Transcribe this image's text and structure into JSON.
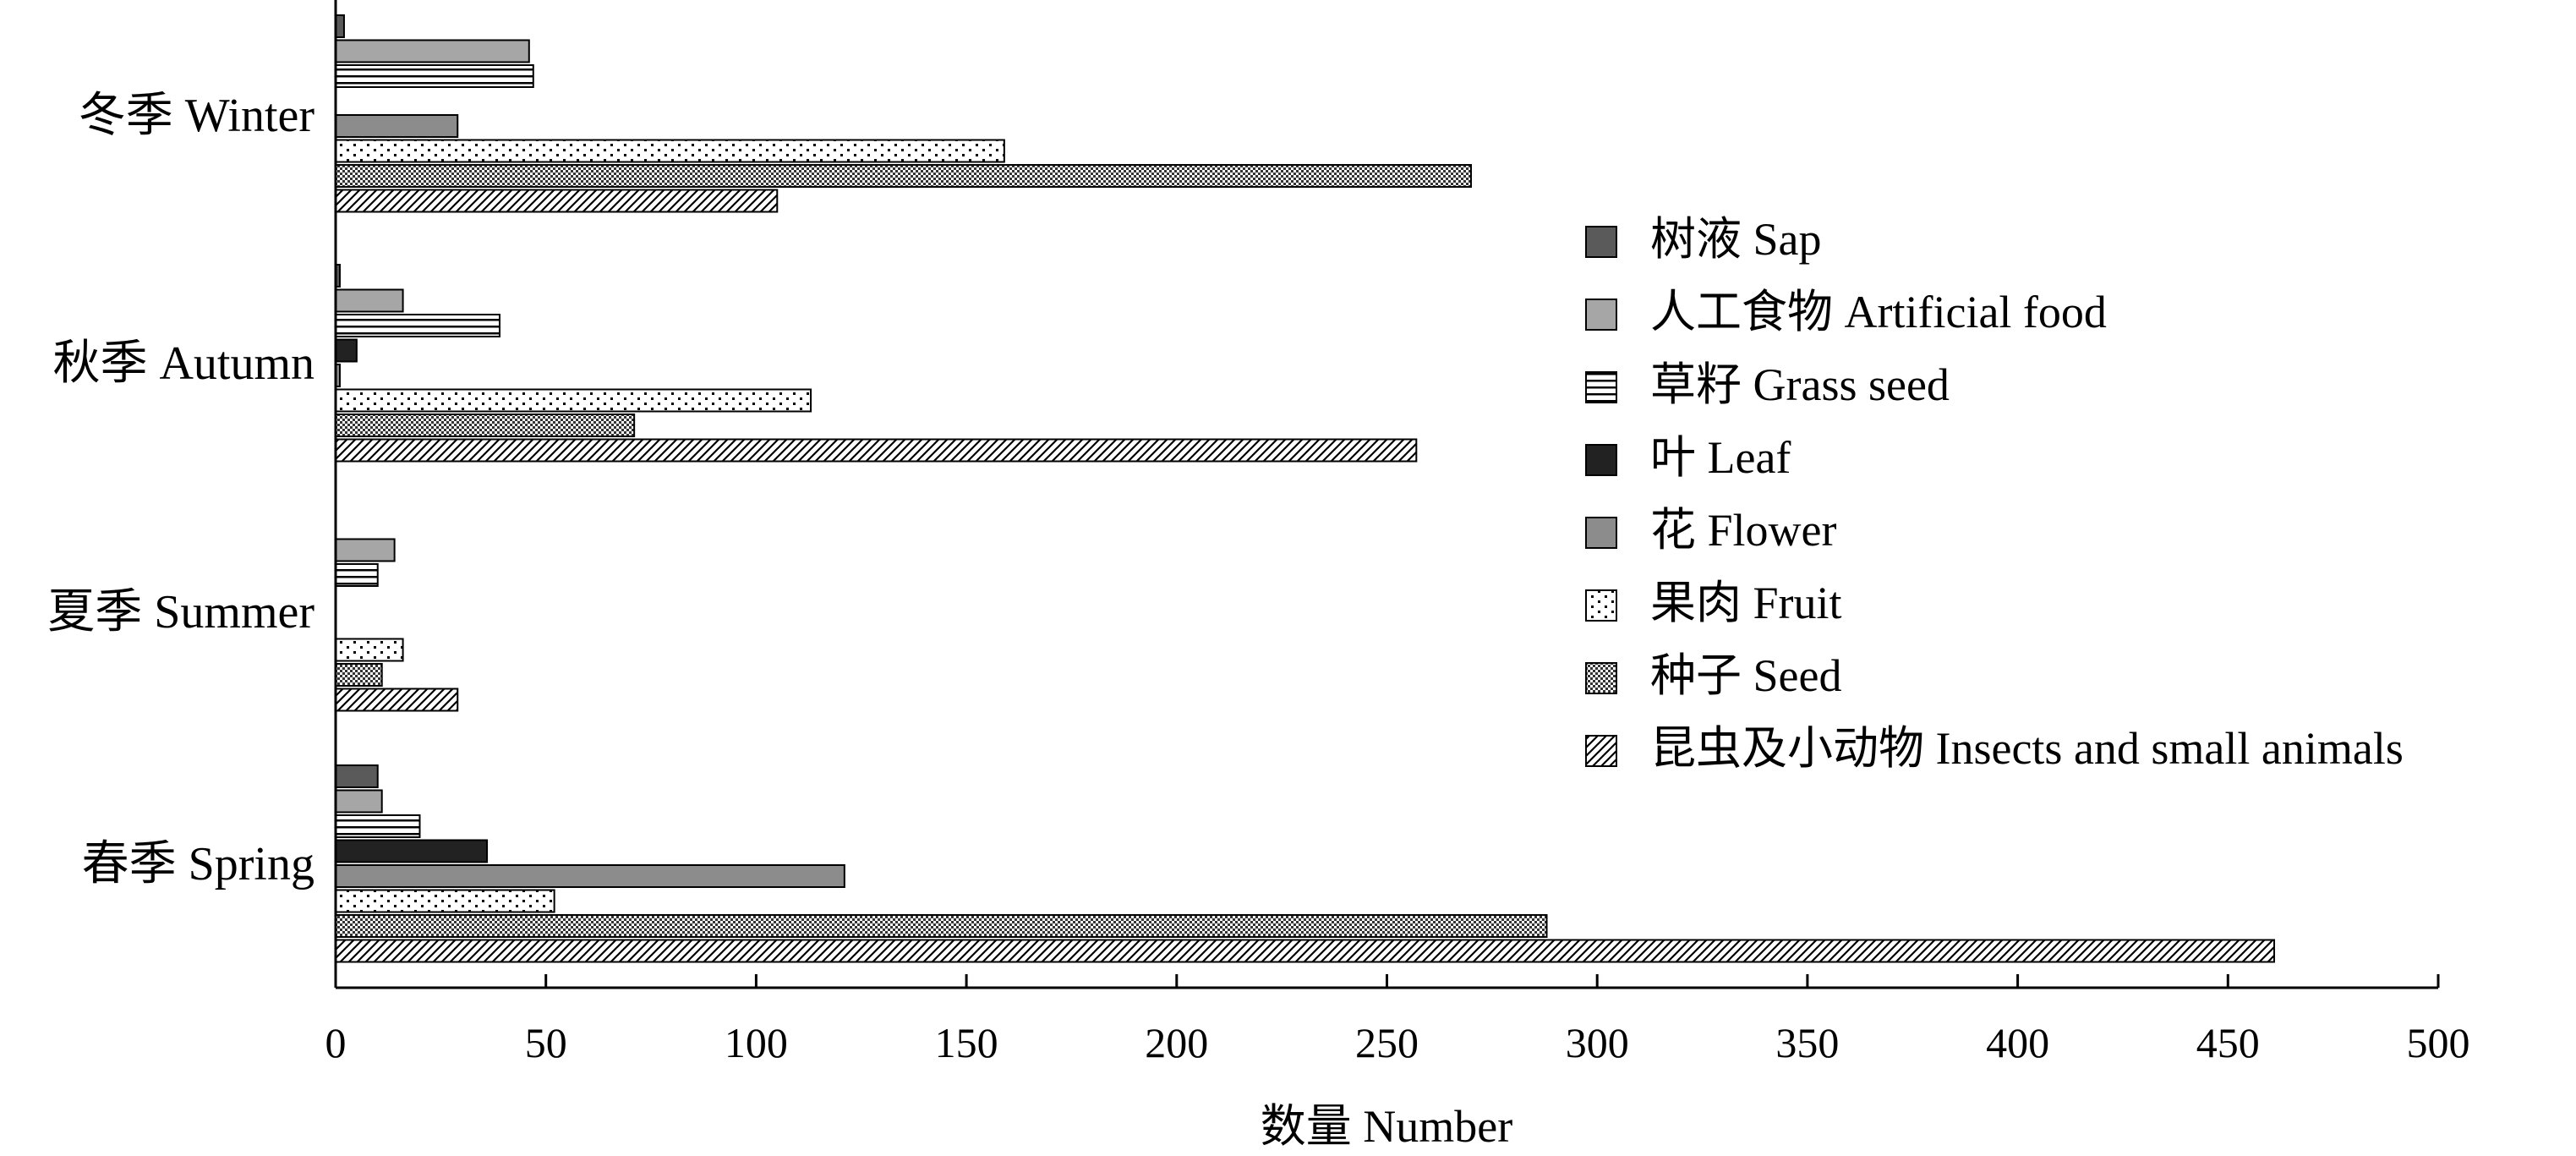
{
  "chart_data": {
    "type": "bar",
    "orientation": "horizontal",
    "xlabel": "数量 Number",
    "xlim": [
      0,
      500
    ],
    "xticks": [
      "0",
      "50",
      "100",
      "150",
      "200",
      "250",
      "300",
      "350",
      "400",
      "450",
      "500"
    ],
    "grid": false,
    "legend_position": "right",
    "categories": [
      "冬季 Winter",
      "秋季 Autumn",
      "夏季 Summer",
      "春季 Spring"
    ],
    "series": [
      {
        "name": "树液 Sap",
        "pattern": "solid-dark-gray",
        "color": "#5a5a5a",
        "values": [
          2,
          1,
          0,
          10
        ]
      },
      {
        "name": "人工食物 Artificial food",
        "pattern": "solid-light-gray",
        "color": "#a6a6a6",
        "values": [
          46,
          16,
          14,
          11
        ]
      },
      {
        "name": "草籽 Grass seed",
        "pattern": "horizontal-stripes",
        "color": "#000000",
        "values": [
          47,
          39,
          10,
          20
        ]
      },
      {
        "name": "叶 Leaf",
        "pattern": "solid-black",
        "color": "#222222",
        "values": [
          0,
          5,
          0,
          36
        ]
      },
      {
        "name": "花 Flower",
        "pattern": "solid-mid-gray",
        "color": "#8c8c8c",
        "values": [
          29,
          1,
          0,
          121
        ]
      },
      {
        "name": "果肉 Fruit",
        "pattern": "dots",
        "color": "#000000",
        "values": [
          159,
          113,
          16,
          52
        ]
      },
      {
        "name": "种子 Seed",
        "pattern": "checker",
        "color": "#000000",
        "values": [
          270,
          71,
          11,
          288
        ]
      },
      {
        "name": "昆虫及小动物 Insects and small animals",
        "pattern": "diagonal-stripes",
        "color": "#000000",
        "values": [
          105,
          257,
          29,
          461
        ]
      }
    ]
  }
}
